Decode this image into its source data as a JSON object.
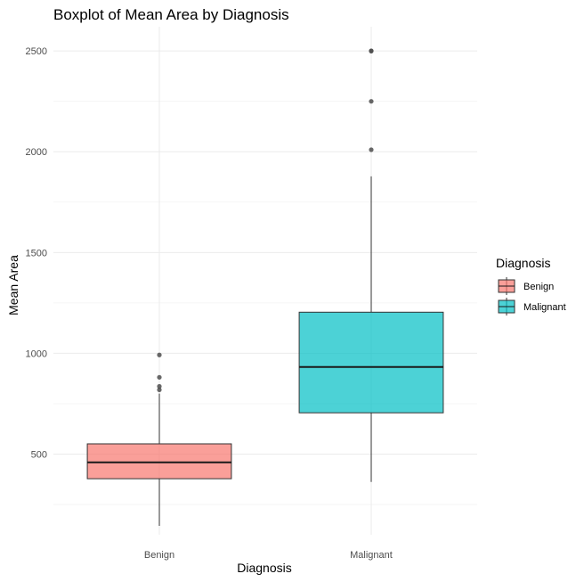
{
  "chart_data": {
    "type": "boxplot",
    "title": "Boxplot of Mean Area by Diagnosis",
    "xlabel": "Diagnosis",
    "ylabel": "Mean Area",
    "categories": [
      "Benign",
      "Malignant"
    ],
    "ylim": [
      100,
      2620
    ],
    "yticks": [
      500,
      1000,
      1500,
      2000,
      2500
    ],
    "grid": true,
    "legend": {
      "title": "Diagnosis",
      "position": "right",
      "entries": [
        "Benign",
        "Malignant"
      ]
    },
    "colors": {
      "Benign": "#f8766d",
      "Malignant": "#00bfc4"
    },
    "boxes": [
      {
        "category": "Benign",
        "whisker_low": 144,
        "q1": 378,
        "median": 459,
        "q3": 551,
        "whisker_high": 800,
        "outliers": [
          819,
          836,
          881,
          992
        ]
      },
      {
        "category": "Malignant",
        "whisker_low": 362,
        "q1": 705,
        "median": 932,
        "q3": 1204,
        "whisker_high": 1878,
        "outliers": [
          2010,
          2250,
          2499,
          2501
        ]
      }
    ]
  }
}
